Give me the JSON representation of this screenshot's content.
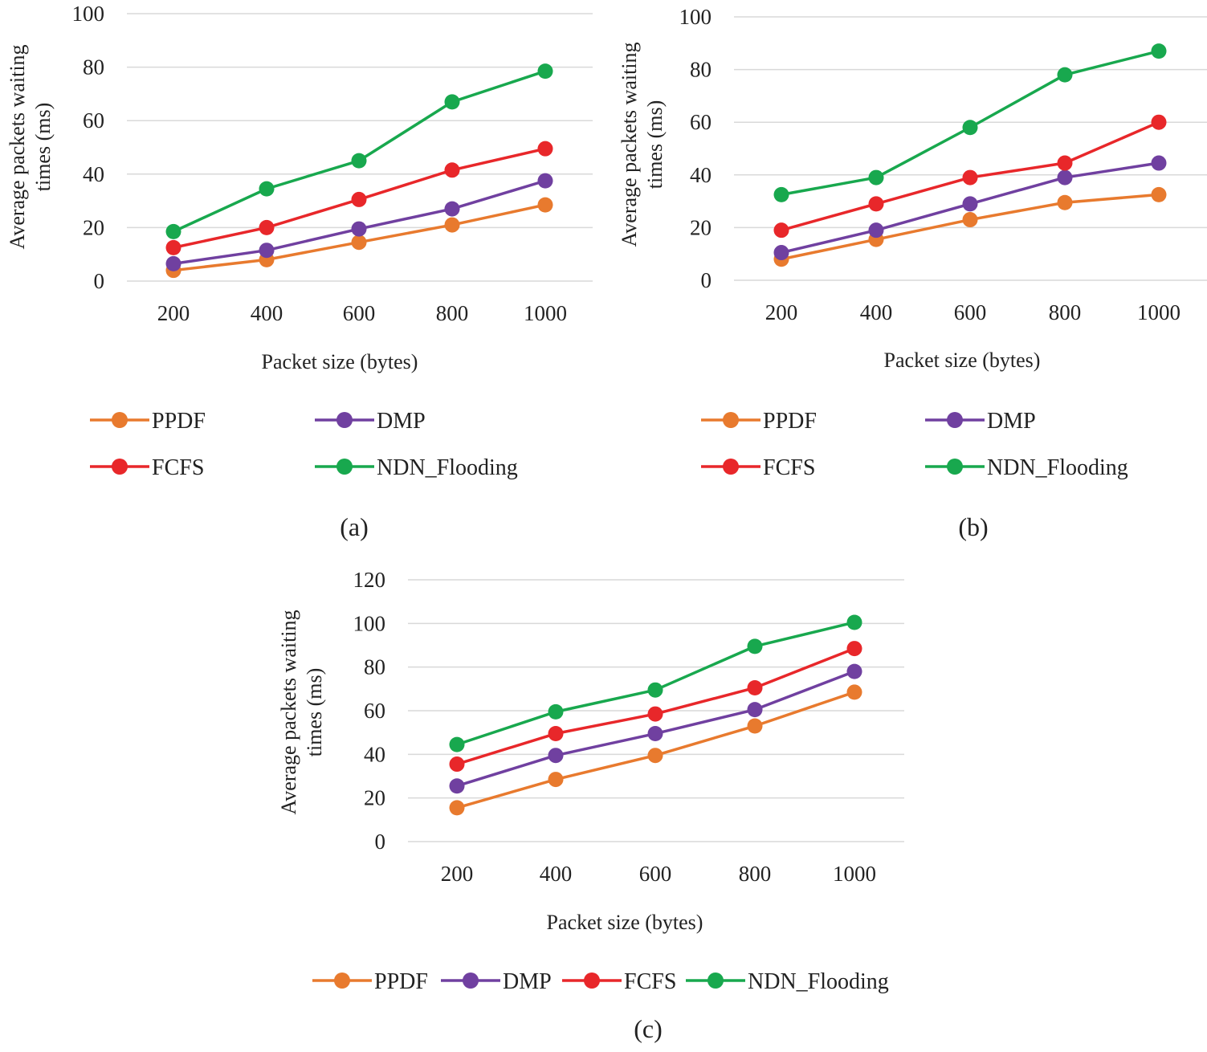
{
  "colors": {
    "PPDF": "#E87A2E",
    "DMP": "#7040A0",
    "FCFS": "#E8272A",
    "NDN_Flooding": "#18A84E",
    "grid": "#D9D9D9",
    "text": "#222222"
  },
  "chart_data": [
    {
      "type": "line",
      "caption": "(a)",
      "xlabel": "Packet size (bytes)",
      "ylabel_lines": [
        "Average packets waiting",
        "times (ms)"
      ],
      "categories": [
        "200",
        "400",
        "600",
        "800",
        "1000"
      ],
      "ylim": [
        0,
        100
      ],
      "yticks": [
        0,
        20,
        40,
        60,
        80,
        100
      ],
      "grid": true,
      "legend_position": "bottom",
      "series": [
        {
          "name": "PPDF",
          "values": [
            4,
            8,
            14.5,
            21,
            28.5
          ]
        },
        {
          "name": "DMP",
          "values": [
            6.5,
            11.5,
            19.5,
            27,
            37.5
          ]
        },
        {
          "name": "FCFS",
          "values": [
            12.5,
            20,
            30.5,
            41.5,
            49.5
          ]
        },
        {
          "name": "NDN_Flooding",
          "values": [
            18.5,
            34.5,
            45,
            67,
            78.5
          ]
        }
      ]
    },
    {
      "type": "line",
      "caption": "(b)",
      "xlabel": "Packet size (bytes)",
      "ylabel_lines": [
        "Average packets waiting",
        "times (ms)"
      ],
      "categories": [
        "200",
        "400",
        "600",
        "800",
        "1000"
      ],
      "ylim": [
        0,
        100
      ],
      "yticks": [
        0,
        20,
        40,
        60,
        80,
        100
      ],
      "grid": true,
      "legend_position": "bottom",
      "series": [
        {
          "name": "PPDF",
          "values": [
            8,
            15.5,
            23,
            29.5,
            32.5
          ]
        },
        {
          "name": "DMP",
          "values": [
            10.5,
            19,
            29,
            39,
            44.5
          ]
        },
        {
          "name": "FCFS",
          "values": [
            19,
            29,
            39,
            44.5,
            60
          ]
        },
        {
          "name": "NDN_Flooding",
          "values": [
            32.5,
            39,
            58,
            78,
            87
          ]
        }
      ]
    },
    {
      "type": "line",
      "caption": "(c)",
      "xlabel": "Packet size (bytes)",
      "ylabel_lines": [
        "Average packets waiting",
        "times (ms)"
      ],
      "categories": [
        "200",
        "400",
        "600",
        "800",
        "1000"
      ],
      "ylim": [
        0,
        120
      ],
      "yticks": [
        0,
        20,
        40,
        60,
        80,
        100,
        120
      ],
      "grid": true,
      "legend_position": "bottom",
      "series": [
        {
          "name": "PPDF",
          "values": [
            15.5,
            28.5,
            39.5,
            53,
            68.5
          ]
        },
        {
          "name": "DMP",
          "values": [
            25.5,
            39.5,
            49.5,
            60.5,
            78
          ]
        },
        {
          "name": "FCFS",
          "values": [
            35.5,
            49.5,
            58.5,
            70.5,
            88.5
          ]
        },
        {
          "name": "NDN_Flooding",
          "values": [
            44.5,
            59.5,
            69.5,
            89.5,
            100.5
          ]
        }
      ]
    }
  ]
}
